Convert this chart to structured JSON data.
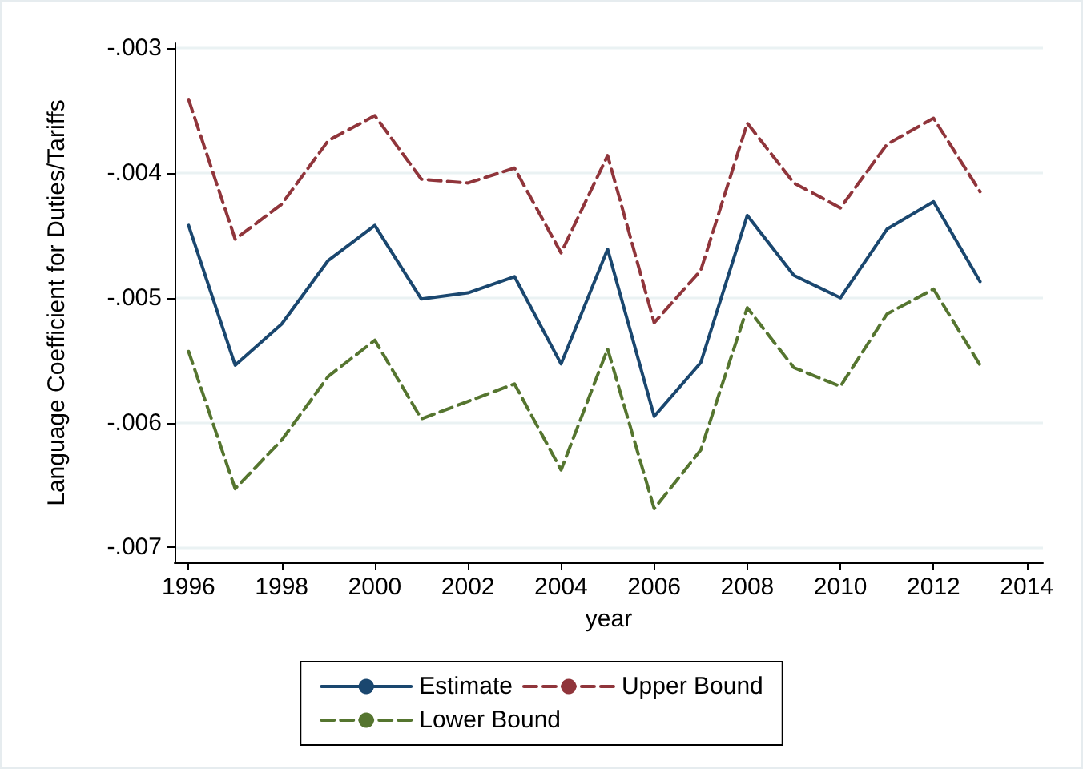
{
  "chart_data": {
    "type": "line",
    "xlabel": "year",
    "ylabel": "Language Coefficient for Duties/Tariffs",
    "x": [
      1996,
      1997,
      1998,
      1999,
      2000,
      2001,
      2002,
      2003,
      2004,
      2005,
      2006,
      2007,
      2008,
      2009,
      2010,
      2011,
      2012,
      2013
    ],
    "series": [
      {
        "name": "Estimate",
        "color": "#1a476f",
        "line_style": "solid",
        "values": [
          -0.00442,
          -0.00554,
          -0.00521,
          -0.0047,
          -0.00442,
          -0.00501,
          -0.00496,
          -0.00483,
          -0.00553,
          -0.00461,
          -0.00595,
          -0.00552,
          -0.00434,
          -0.00482,
          -0.005,
          -0.00445,
          -0.00423,
          -0.00487
        ]
      },
      {
        "name": "Upper Bound",
        "color": "#90353b",
        "line_style": "dashed",
        "values": [
          -0.00341,
          -0.00453,
          -0.00425,
          -0.00374,
          -0.00354,
          -0.00405,
          -0.00408,
          -0.00396,
          -0.00464,
          -0.00386,
          -0.0052,
          -0.00478,
          -0.0036,
          -0.00408,
          -0.00428,
          -0.00377,
          -0.00356,
          -0.00415
        ]
      },
      {
        "name": "Lower Bound",
        "color": "#55752f",
        "line_style": "dashed",
        "values": [
          -0.00543,
          -0.00653,
          -0.00614,
          -0.00563,
          -0.00534,
          -0.00597,
          -0.00583,
          -0.00569,
          -0.00638,
          -0.00541,
          -0.00669,
          -0.00622,
          -0.00508,
          -0.00556,
          -0.00571,
          -0.00513,
          -0.00493,
          -0.00554
        ]
      }
    ],
    "xlim": [
      1995.7,
      2014.35
    ],
    "xticks": [
      1996,
      1998,
      2000,
      2002,
      2004,
      2006,
      2008,
      2010,
      2012,
      2014
    ],
    "ylim": [
      -0.00712,
      -0.00296
    ],
    "yticks": [
      {
        "value": -0.007,
        "label": "-.007"
      },
      {
        "value": -0.006,
        "label": "-.006"
      },
      {
        "value": -0.005,
        "label": "-.005"
      },
      {
        "value": -0.004,
        "label": "-.004"
      },
      {
        "value": -0.003,
        "label": "-.003"
      }
    ],
    "grid": "y",
    "legend": "bottom",
    "marker": "none"
  }
}
